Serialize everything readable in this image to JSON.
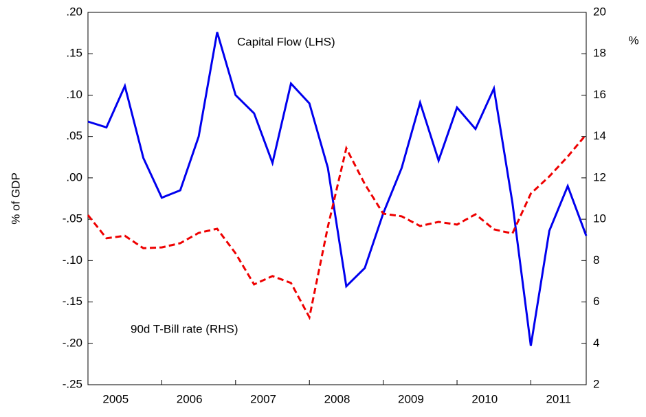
{
  "chart_data": {
    "type": "line",
    "y_label": "% of GDP",
    "y2_label": "%",
    "categories": [
      "2005",
      null,
      null,
      null,
      "2006",
      null,
      null,
      null,
      "2007",
      null,
      null,
      null,
      "2008",
      null,
      null,
      null,
      "2009",
      null,
      null,
      null,
      "2010",
      null,
      null,
      null,
      "2011",
      null,
      null,
      null
    ],
    "series": [
      {
        "name": "Capital Flow (LHS)",
        "color": "#0000ee",
        "dash": false,
        "values": [
          0.068,
          0.061,
          0.111,
          0.024,
          -0.024,
          -0.015,
          0.05,
          0.176,
          0.1,
          0.078,
          0.018,
          0.114,
          0.09,
          0.012,
          -0.131,
          -0.109,
          -0.043,
          0.012,
          0.091,
          0.021,
          0.085,
          0.059,
          0.108,
          -0.03,
          -0.203,
          -0.064,
          -0.01,
          -0.07
        ]
      },
      {
        "name": "90d T-Bill rate (RHS)",
        "color": "#ee0000",
        "dash": true,
        "axis": "y2",
        "values": [
          10.2,
          9.08,
          9.2,
          8.6,
          8.64,
          8.84,
          9.34,
          9.54,
          8.35,
          6.85,
          7.25,
          6.92,
          5.26,
          9.64,
          13.43,
          11.7,
          10.27,
          10.14,
          9.67,
          9.87,
          9.74,
          10.24,
          9.51,
          9.31,
          11.24,
          12.07,
          13.03,
          14.1
        ]
      }
    ],
    "ylim": [
      -0.25,
      0.2
    ],
    "yticks": [
      {
        "value": -0.25,
        "label": "-.25"
      },
      {
        "value": -0.2,
        "label": "-.20"
      },
      {
        "value": -0.15,
        "label": "-.15"
      },
      {
        "value": -0.1,
        "label": "-.10"
      },
      {
        "value": -0.05,
        "label": "-.05"
      },
      {
        "value": 0,
        "label": ".00"
      },
      {
        "value": 0.05,
        "label": ".05"
      },
      {
        "value": 0.1,
        "label": ".10"
      },
      {
        "value": 0.15,
        "label": ".15"
      },
      {
        "value": 0.2,
        "label": ".20"
      }
    ],
    "y2lim": [
      2,
      20
    ],
    "y2ticks": [
      2,
      4,
      6,
      8,
      10,
      12,
      14,
      16,
      18,
      20
    ]
  }
}
